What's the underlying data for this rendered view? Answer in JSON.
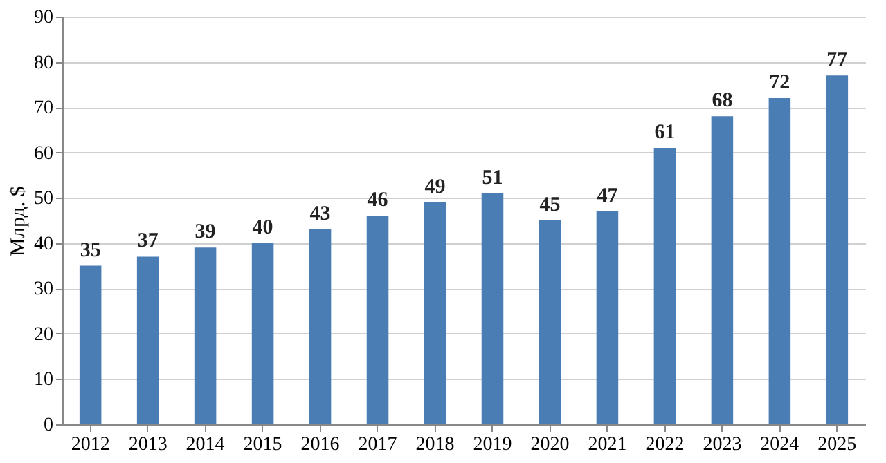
{
  "chart_data": {
    "type": "bar",
    "ylabel": "Млрд. $",
    "categories": [
      "2012",
      "2013",
      "2014",
      "2015",
      "2016",
      "2017",
      "2018",
      "2019",
      "2020",
      "2021",
      "2022",
      "2023",
      "2024",
      "2025"
    ],
    "values": [
      35,
      37,
      39,
      40,
      43,
      46,
      49,
      51,
      45,
      47,
      61,
      68,
      72,
      77
    ],
    "color": "#4a7db4",
    "ylim": [
      0,
      90
    ],
    "yticks": [
      0,
      10,
      20,
      30,
      40,
      50,
      60,
      70,
      80,
      90
    ],
    "grid": "y",
    "data_labels": true
  }
}
